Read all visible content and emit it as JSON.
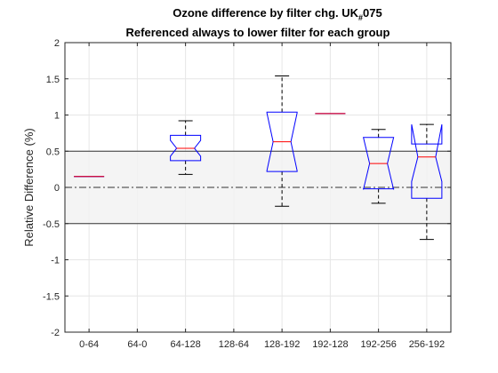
{
  "figure": {
    "title_line1_main": "Ozone difference by filter chg. UK",
    "title_line1_sub": "#",
    "title_line1_end": "075",
    "title_line2": "Referenced always to lower filter for each group"
  },
  "chart_data": {
    "type": "boxplot",
    "title": "Ozone difference by filter chg. UK#075 / Referenced always to lower filter for each group",
    "xlabel": "",
    "ylabel": "Relative Difference (%)",
    "ylim": [
      -2,
      2
    ],
    "yticks": [
      -2,
      -1.5,
      -1,
      -0.5,
      0,
      0.5,
      1,
      1.5,
      2
    ],
    "ytick_labels": [
      "-2",
      "-1.5",
      "-1",
      "-0.5",
      "0",
      "0.5",
      "1",
      "1.5",
      "2"
    ],
    "grid": true,
    "categories": [
      "0-64",
      "64-0",
      "64-128",
      "128-64",
      "128-192",
      "192-128",
      "192-256",
      "256-192"
    ],
    "reference_band": {
      "lower": -0.5,
      "upper": 0.5
    },
    "reference_line": 0,
    "boxes": [
      {
        "category": "0-64",
        "median": 0.15,
        "q1": 0.15,
        "q3": 0.15,
        "notch_low": 0.15,
        "notch_high": 0.15,
        "whisker_low": 0.15,
        "whisker_high": 0.15
      },
      null,
      {
        "category": "64-128",
        "median": 0.54,
        "q1": 0.37,
        "q3": 0.72,
        "notch_low": 0.43,
        "notch_high": 0.65,
        "whisker_low": 0.18,
        "whisker_high": 0.92
      },
      null,
      {
        "category": "128-192",
        "median": 0.63,
        "q1": 0.22,
        "q3": 1.04,
        "notch_low": 0.23,
        "notch_high": 1.03,
        "whisker_low": -0.26,
        "whisker_high": 1.54
      },
      {
        "category": "192-128",
        "median": 1.02,
        "q1": 1.02,
        "q3": 1.02,
        "notch_low": 1.02,
        "notch_high": 1.02,
        "whisker_low": 1.02,
        "whisker_high": 1.02
      },
      {
        "category": "192-256",
        "median": 0.33,
        "q1": -0.02,
        "q3": 0.69,
        "notch_low": -0.03,
        "notch_high": 0.69,
        "whisker_low": -0.22,
        "whisker_high": 0.8
      },
      {
        "category": "256-192",
        "median": 0.42,
        "q1": -0.15,
        "q3": 0.6,
        "notch_low": 0.08,
        "notch_high": 0.87,
        "whisker_low": -0.72,
        "whisker_high": 0.87
      }
    ],
    "colors": {
      "box": "#0000ff",
      "median": "#ff0000",
      "whisker": "#000000",
      "band_fill": "#f2f2f2",
      "grid": "#e6e6e6"
    }
  }
}
